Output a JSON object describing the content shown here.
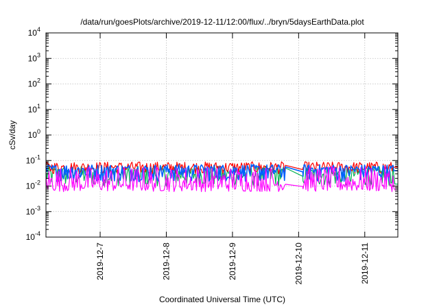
{
  "chart_data": {
    "type": "line",
    "title": "/data/run/goesPlots/archive/2019-12-11/12:00/flux/../bryn/5daysEarthData.plot",
    "xlabel": "Coordinated Universal Time (UTC)",
    "ylabel": "cSv/day",
    "yscale": "log",
    "ylim": [
      0.0001,
      10000
    ],
    "xlim": [
      "2019-12-06T04:20",
      "2019-12-11T12:00"
    ],
    "grid": true,
    "legend": "none",
    "x_ticks": [
      "2019-12-7",
      "2019-12-8",
      "2019-12-9",
      "2019-12-10",
      "2019-12-11"
    ],
    "y_ticks": [
      {
        "base": "10",
        "exp": "-4"
      },
      {
        "base": "10",
        "exp": "-3"
      },
      {
        "base": "10",
        "exp": "-2"
      },
      {
        "base": "10",
        "exp": "-1"
      },
      {
        "base": "10",
        "exp": "0"
      },
      {
        "base": "10",
        "exp": "1"
      },
      {
        "base": "10",
        "exp": "2"
      },
      {
        "base": "10",
        "exp": "3"
      },
      {
        "base": "10",
        "exp": "4"
      }
    ],
    "data_gap": [
      "2019-12-09T19:30",
      "2019-12-10T01:30"
    ],
    "series": [
      {
        "color": "#ff0000",
        "typical": 0.055,
        "range": [
          0.03,
          0.09
        ],
        "end_value": 0.055
      },
      {
        "color": "#00b050",
        "typical": 0.03,
        "range": [
          0.01,
          0.06
        ],
        "end_value": 0.012
      },
      {
        "color": "#0060ff",
        "typical": 0.045,
        "range": [
          0.015,
          0.07
        ],
        "end_value": 0.04
      },
      {
        "color": "#ff00ff",
        "typical": 0.012,
        "range": [
          0.006,
          0.06
        ],
        "end_value": 0.007
      }
    ]
  }
}
